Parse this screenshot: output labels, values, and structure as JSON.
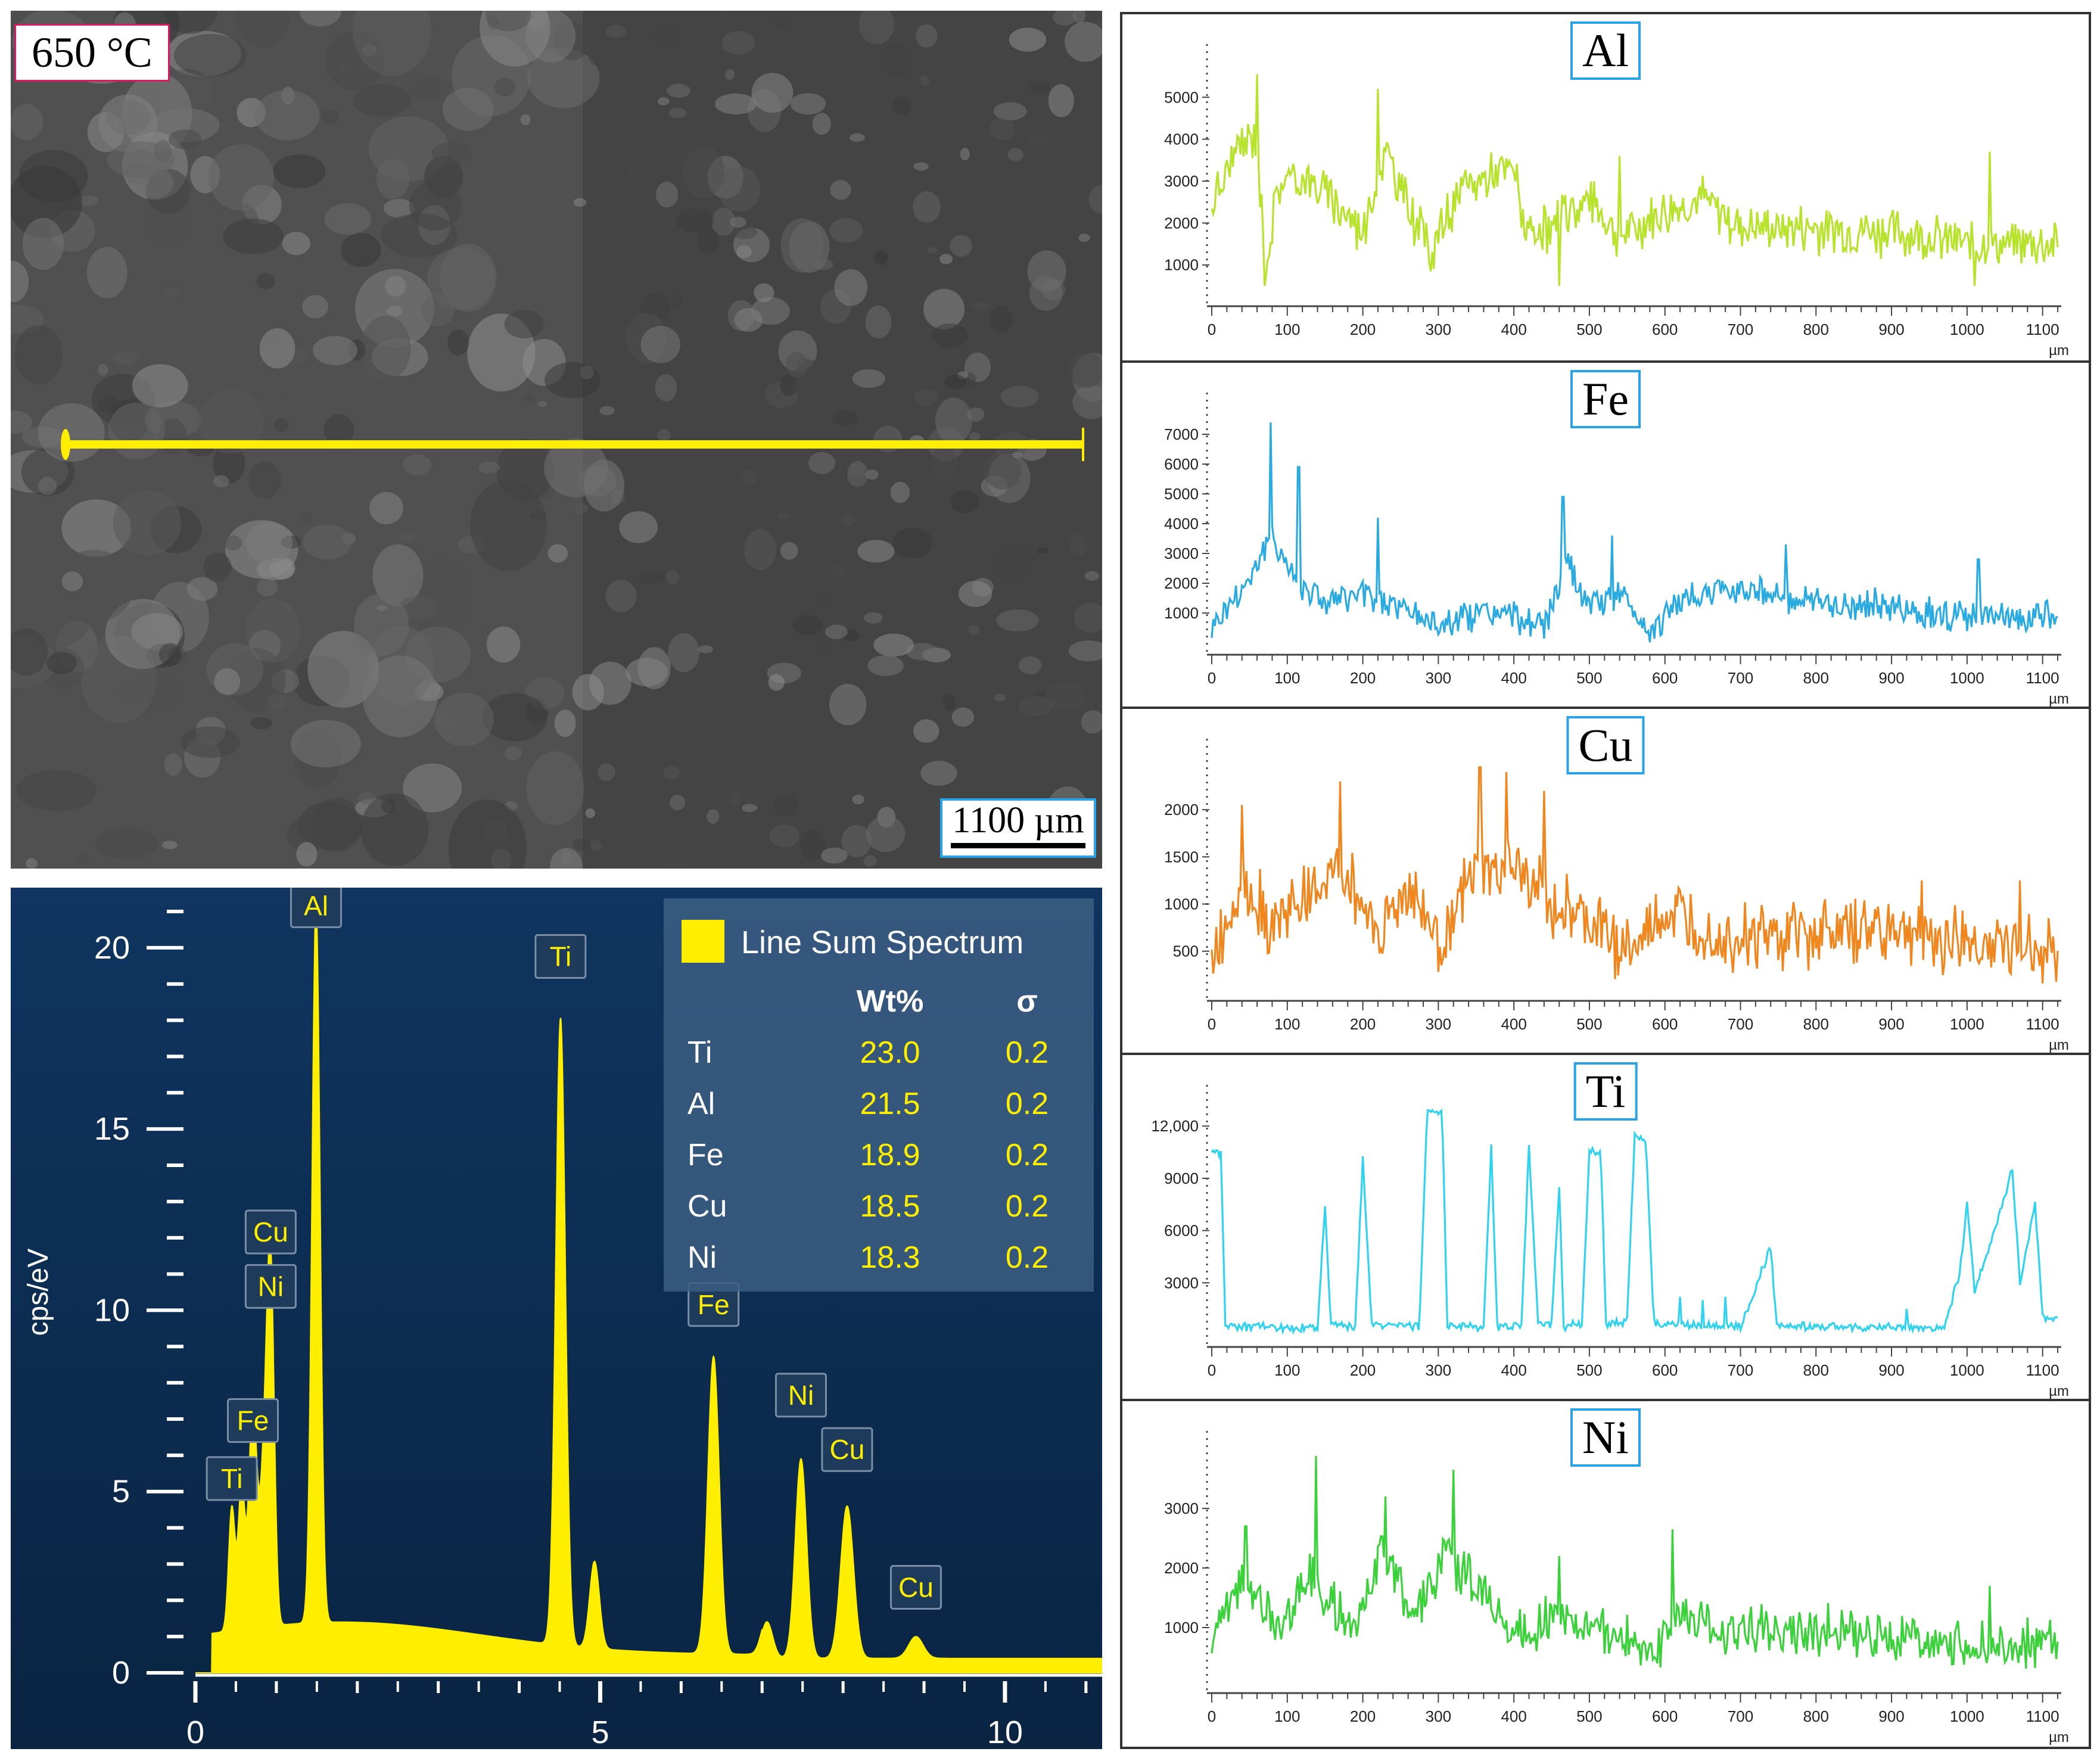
{
  "sem_image": {
    "temperature_label": "650 °C",
    "scale_bar_label": "1100 µm",
    "colors": {
      "scan_line": "#ffee00",
      "background": "#4a4a4a"
    }
  },
  "chart_data": [
    {
      "type": "area",
      "title": "",
      "ylabel": "cps/eV",
      "xlabel": "",
      "xlim": [
        0,
        11.2
      ],
      "ylim": [
        0,
        21
      ],
      "xticks": [
        0,
        5,
        10
      ],
      "yticks": [
        0,
        5,
        10,
        15,
        20
      ],
      "color": "#ffee00",
      "background": "#0d2e55",
      "peaks": [
        {
          "x": 0.45,
          "y": 3.4,
          "w": 0.04
        },
        {
          "x": 0.57,
          "y": 4.0,
          "w": 0.04
        },
        {
          "x": 0.71,
          "y": 6.2,
          "w": 0.05
        },
        {
          "x": 0.85,
          "y": 4.2,
          "w": 0.05
        },
        {
          "x": 0.93,
          "y": 9.4,
          "w": 0.045
        },
        {
          "x": 1.49,
          "y": 19.8,
          "w": 0.05
        },
        {
          "x": 4.51,
          "y": 17.3,
          "w": 0.06
        },
        {
          "x": 4.93,
          "y": 2.4,
          "w": 0.06
        },
        {
          "x": 6.4,
          "y": 8.2,
          "w": 0.07
        },
        {
          "x": 7.06,
          "y": 1.0,
          "w": 0.07
        },
        {
          "x": 7.48,
          "y": 5.5,
          "w": 0.07
        },
        {
          "x": 8.05,
          "y": 4.2,
          "w": 0.08
        },
        {
          "x": 8.9,
          "y": 0.6,
          "w": 0.09
        }
      ],
      "annotations": [
        {
          "label": "Al",
          "x": 1.49,
          "y": 20.6
        },
        {
          "label": "Ti",
          "x": 4.51,
          "y": 19.2
        },
        {
          "label": "Cu",
          "x": 0.93,
          "y": 11.6
        },
        {
          "label": "Ni",
          "x": 0.93,
          "y": 10.1
        },
        {
          "label": "Fe",
          "x": 0.71,
          "y": 6.4
        },
        {
          "label": "Ti",
          "x": 0.45,
          "y": 4.8
        },
        {
          "label": "Fe",
          "x": 6.4,
          "y": 9.6
        },
        {
          "label": "Ni",
          "x": 7.48,
          "y": 7.1
        },
        {
          "label": "Cu",
          "x": 8.05,
          "y": 5.6
        },
        {
          "label": "Cu",
          "x": 8.9,
          "y": 1.8
        }
      ],
      "legend": {
        "series_name": "Line Sum Spectrum",
        "placement": "top-right",
        "columns": [
          "Wt%",
          "σ"
        ],
        "rows": [
          {
            "element": "Ti",
            "wt": "23.0",
            "sigma": "0.2"
          },
          {
            "element": "Al",
            "wt": "21.5",
            "sigma": "0.2"
          },
          {
            "element": "Fe",
            "wt": "18.9",
            "sigma": "0.2"
          },
          {
            "element": "Cu",
            "wt": "18.5",
            "sigma": "0.2"
          },
          {
            "element": "Ni",
            "wt": "18.3",
            "sigma": "0.2"
          }
        ]
      }
    },
    {
      "type": "line",
      "title": "Al",
      "xlabel": "µm",
      "ylabel": "",
      "xlim": [
        0,
        1120
      ],
      "ylim": [
        300,
        5700
      ],
      "xticks": [
        0,
        100,
        200,
        300,
        400,
        500,
        600,
        700,
        800,
        900,
        1000,
        1100
      ],
      "yticks": [
        1000,
        2000,
        3000,
        4000,
        5000
      ],
      "color": "#b7e32c",
      "profile": [
        {
          "x": 0,
          "y": 2400
        },
        {
          "x": 30,
          "y": 3600
        },
        {
          "x": 60,
          "y": 4200
        },
        {
          "x": 70,
          "y": 900
        },
        {
          "x": 90,
          "y": 3000
        },
        {
          "x": 120,
          "y": 3100
        },
        {
          "x": 160,
          "y": 2600
        },
        {
          "x": 200,
          "y": 1800
        },
        {
          "x": 230,
          "y": 3700
        },
        {
          "x": 260,
          "y": 2400
        },
        {
          "x": 290,
          "y": 1400
        },
        {
          "x": 330,
          "y": 2700
        },
        {
          "x": 360,
          "y": 3100
        },
        {
          "x": 400,
          "y": 3300
        },
        {
          "x": 420,
          "y": 1500
        },
        {
          "x": 460,
          "y": 2000
        },
        {
          "x": 500,
          "y": 2600
        },
        {
          "x": 540,
          "y": 1700
        },
        {
          "x": 600,
          "y": 2300
        },
        {
          "x": 650,
          "y": 2600
        },
        {
          "x": 700,
          "y": 1900
        },
        {
          "x": 800,
          "y": 1900
        },
        {
          "x": 900,
          "y": 1800
        },
        {
          "x": 1000,
          "y": 1500
        },
        {
          "x": 1120,
          "y": 1500
        }
      ],
      "noise": 700,
      "spikes": [
        [
          60,
          5550
        ],
        [
          220,
          5200
        ],
        [
          70,
          500
        ],
        [
          460,
          500
        ],
        [
          1010,
          500
        ],
        [
          1030,
          3700
        ],
        [
          540,
          3600
        ]
      ]
    },
    {
      "type": "line",
      "title": "Fe",
      "xlabel": "µm",
      "ylabel": "",
      "xlim": [
        0,
        1120
      ],
      "ylim": [
        0,
        7600
      ],
      "xticks": [
        0,
        100,
        200,
        300,
        400,
        500,
        600,
        700,
        800,
        900,
        1000,
        1100
      ],
      "yticks": [
        1000,
        2000,
        3000,
        4000,
        5000,
        6000,
        7000
      ],
      "color": "#29abe2",
      "profile": [
        {
          "x": 0,
          "y": 600
        },
        {
          "x": 40,
          "y": 1800
        },
        {
          "x": 80,
          "y": 3600
        },
        {
          "x": 110,
          "y": 2200
        },
        {
          "x": 150,
          "y": 1400
        },
        {
          "x": 200,
          "y": 1600
        },
        {
          "x": 250,
          "y": 1200
        },
        {
          "x": 300,
          "y": 600
        },
        {
          "x": 350,
          "y": 1000
        },
        {
          "x": 400,
          "y": 900
        },
        {
          "x": 440,
          "y": 500
        },
        {
          "x": 470,
          "y": 2600
        },
        {
          "x": 500,
          "y": 1200
        },
        {
          "x": 540,
          "y": 1600
        },
        {
          "x": 580,
          "y": 400
        },
        {
          "x": 620,
          "y": 1400
        },
        {
          "x": 700,
          "y": 1900
        },
        {
          "x": 800,
          "y": 1300
        },
        {
          "x": 900,
          "y": 1200
        },
        {
          "x": 1000,
          "y": 800
        },
        {
          "x": 1120,
          "y": 900
        }
      ],
      "noise": 650,
      "spikes": [
        [
          78,
          7400
        ],
        [
          115,
          5900
        ],
        [
          465,
          4900
        ],
        [
          220,
          4200
        ],
        [
          530,
          3600
        ],
        [
          760,
          3300
        ],
        [
          1015,
          2800
        ]
      ]
    },
    {
      "type": "line",
      "title": "Cu",
      "xlabel": "µm",
      "ylabel": "",
      "xlim": [
        0,
        1120
      ],
      "ylim": [
        100,
        2500
      ],
      "xticks": [
        0,
        100,
        200,
        300,
        400,
        500,
        600,
        700,
        800,
        900,
        1000,
        1100
      ],
      "yticks": [
        500,
        1000,
        1500,
        2000
      ],
      "color": "#f0861e",
      "profile": [
        {
          "x": 0,
          "y": 400
        },
        {
          "x": 40,
          "y": 1300
        },
        {
          "x": 80,
          "y": 800
        },
        {
          "x": 130,
          "y": 1100
        },
        {
          "x": 170,
          "y": 1400
        },
        {
          "x": 220,
          "y": 700
        },
        {
          "x": 260,
          "y": 1200
        },
        {
          "x": 300,
          "y": 600
        },
        {
          "x": 350,
          "y": 1300
        },
        {
          "x": 390,
          "y": 1400
        },
        {
          "x": 440,
          "y": 1100
        },
        {
          "x": 480,
          "y": 900
        },
        {
          "x": 520,
          "y": 700
        },
        {
          "x": 560,
          "y": 500
        },
        {
          "x": 600,
          "y": 900
        },
        {
          "x": 700,
          "y": 650
        },
        {
          "x": 800,
          "y": 700
        },
        {
          "x": 900,
          "y": 750
        },
        {
          "x": 1000,
          "y": 600
        },
        {
          "x": 1120,
          "y": 500
        }
      ],
      "noise": 450,
      "spikes": [
        [
          170,
          2300
        ],
        [
          355,
          2450
        ],
        [
          390,
          2400
        ],
        [
          440,
          2200
        ],
        [
          40,
          2050
        ],
        [
          940,
          1250
        ],
        [
          1070,
          1250
        ]
      ]
    },
    {
      "type": "line",
      "title": "Ti",
      "xlabel": "µm",
      "ylabel": "",
      "xlim": [
        0,
        1120
      ],
      "ylim": [
        0,
        13000
      ],
      "xticks": [
        0,
        100,
        200,
        300,
        400,
        500,
        600,
        700,
        800,
        900,
        1000,
        1100
      ],
      "yticks": [
        3000,
        6000,
        9000,
        12000
      ],
      "ytick_labels": [
        "3000",
        "6000",
        "9000",
        "12,000"
      ],
      "color": "#2fd3f0",
      "profile": [
        {
          "x": 0,
          "y": 10500
        },
        {
          "x": 12,
          "y": 10500
        },
        {
          "x": 18,
          "y": 500
        },
        {
          "x": 140,
          "y": 400
        },
        {
          "x": 150,
          "y": 7500
        },
        {
          "x": 158,
          "y": 500
        },
        {
          "x": 190,
          "y": 500
        },
        {
          "x": 200,
          "y": 10000
        },
        {
          "x": 212,
          "y": 600
        },
        {
          "x": 275,
          "y": 500
        },
        {
          "x": 285,
          "y": 12800
        },
        {
          "x": 305,
          "y": 12800
        },
        {
          "x": 312,
          "y": 500
        },
        {
          "x": 360,
          "y": 500
        },
        {
          "x": 370,
          "y": 10800
        },
        {
          "x": 378,
          "y": 500
        },
        {
          "x": 410,
          "y": 500
        },
        {
          "x": 420,
          "y": 11000
        },
        {
          "x": 432,
          "y": 600
        },
        {
          "x": 450,
          "y": 600
        },
        {
          "x": 460,
          "y": 8500
        },
        {
          "x": 466,
          "y": 500
        },
        {
          "x": 490,
          "y": 600
        },
        {
          "x": 500,
          "y": 10500
        },
        {
          "x": 515,
          "y": 10500
        },
        {
          "x": 522,
          "y": 600
        },
        {
          "x": 550,
          "y": 800
        },
        {
          "x": 560,
          "y": 11500
        },
        {
          "x": 575,
          "y": 11000
        },
        {
          "x": 585,
          "y": 700
        },
        {
          "x": 700,
          "y": 500
        },
        {
          "x": 740,
          "y": 5000
        },
        {
          "x": 748,
          "y": 500
        },
        {
          "x": 970,
          "y": 400
        },
        {
          "x": 990,
          "y": 3500
        },
        {
          "x": 1000,
          "y": 7500
        },
        {
          "x": 1010,
          "y": 2500
        },
        {
          "x": 1040,
          "y": 6500
        },
        {
          "x": 1060,
          "y": 9500
        },
        {
          "x": 1070,
          "y": 3000
        },
        {
          "x": 1090,
          "y": 7500
        },
        {
          "x": 1100,
          "y": 1000
        },
        {
          "x": 1120,
          "y": 1000
        }
      ],
      "noise": 300,
      "spikes": [
        [
          620,
          2200
        ],
        [
          650,
          2000
        ],
        [
          680,
          2200
        ],
        [
          920,
          1500
        ]
      ]
    },
    {
      "type": "line",
      "title": "Ni",
      "xlabel": "µm",
      "ylabel": "",
      "xlim": [
        0,
        1120
      ],
      "ylim": [
        100,
        3900
      ],
      "xticks": [
        0,
        100,
        200,
        300,
        400,
        500,
        600,
        700,
        800,
        900,
        1000,
        1100
      ],
      "yticks": [
        1000,
        2000,
        3000
      ],
      "color": "#3ad13a",
      "profile": [
        {
          "x": 0,
          "y": 800
        },
        {
          "x": 40,
          "y": 1800
        },
        {
          "x": 90,
          "y": 1000
        },
        {
          "x": 130,
          "y": 1900
        },
        {
          "x": 180,
          "y": 1000
        },
        {
          "x": 230,
          "y": 2300
        },
        {
          "x": 270,
          "y": 1200
        },
        {
          "x": 310,
          "y": 2200
        },
        {
          "x": 350,
          "y": 1700
        },
        {
          "x": 400,
          "y": 900
        },
        {
          "x": 460,
          "y": 1200
        },
        {
          "x": 520,
          "y": 1000
        },
        {
          "x": 580,
          "y": 500
        },
        {
          "x": 620,
          "y": 1200
        },
        {
          "x": 700,
          "y": 900
        },
        {
          "x": 800,
          "y": 950
        },
        {
          "x": 900,
          "y": 850
        },
        {
          "x": 1000,
          "y": 700
        },
        {
          "x": 1120,
          "y": 700
        }
      ],
      "noise": 500,
      "spikes": [
        [
          138,
          3900
        ],
        [
          230,
          3200
        ],
        [
          320,
          3650
        ],
        [
          45,
          2700
        ],
        [
          610,
          2650
        ],
        [
          460,
          2200
        ],
        [
          1030,
          1700
        ]
      ]
    }
  ]
}
